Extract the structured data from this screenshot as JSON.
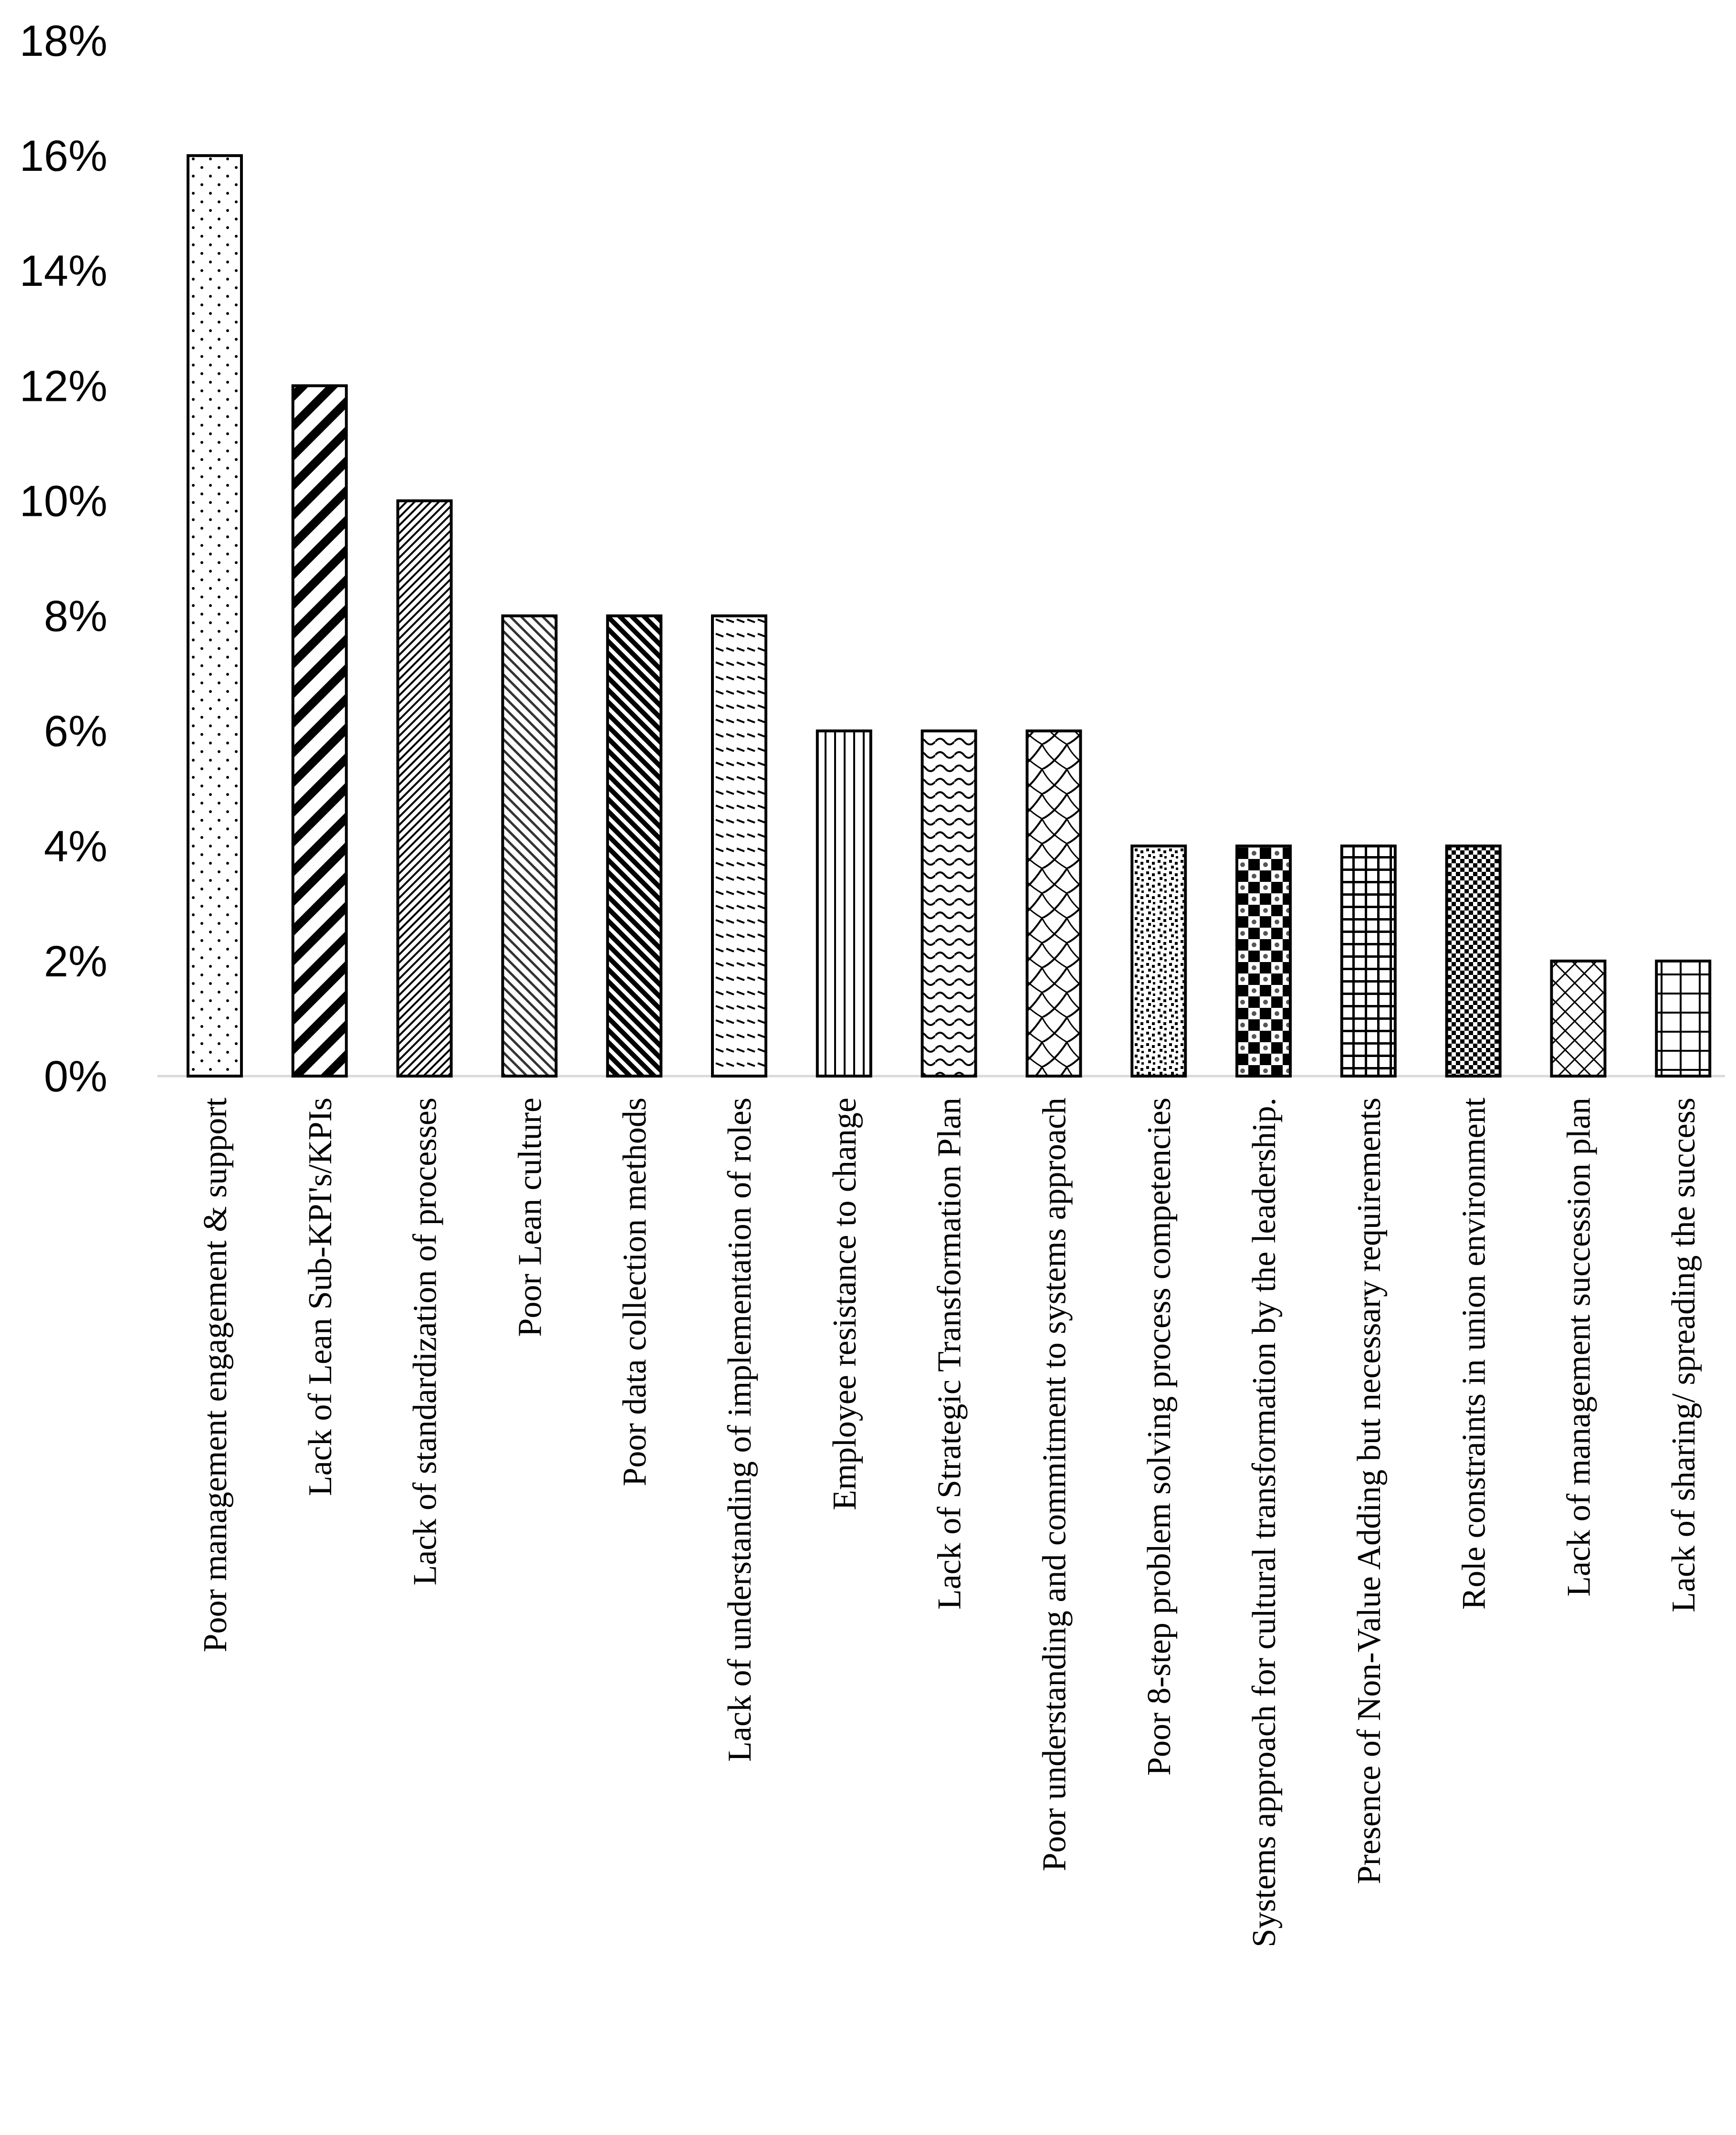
{
  "chart_data": {
    "type": "bar",
    "title": "",
    "xlabel": "",
    "ylabel": "",
    "ylim": [
      0,
      18
    ],
    "yticks": [
      "0%",
      "2%",
      "4%",
      "6%",
      "8%",
      "10%",
      "12%",
      "14%",
      "16%",
      "18%"
    ],
    "grid": false,
    "legend": "none",
    "categories": [
      "Poor management engagement & support",
      "Lack of Lean Sub-KPI's/KPIs",
      "Lack of standardization of processes",
      "Poor Lean culture",
      "Poor data collection methods",
      "Lack of understanding of implementation of roles",
      "Employee resistance to change",
      "Lack of Strategic Transformation Plan",
      "Poor understanding and commitment to systems approach",
      "Poor 8-step problem solving process competencies",
      "Systems approach for cultural transformation by the leadership.",
      "Presence of Non-Value Adding but necessary requirements",
      "Role constraints in union environment",
      "Lack of management succession plan",
      "Lack of sharing/ spreading the success"
    ],
    "values": [
      16,
      12,
      10,
      8,
      8,
      8,
      6,
      6,
      6,
      4,
      4,
      4,
      4,
      2,
      2
    ],
    "unit": "%",
    "patterns": [
      "dots",
      "wide-diagonal",
      "fine-diagonal",
      "diagonal-light",
      "diagonal-dark",
      "dashed-rows",
      "vertical-lines",
      "waves",
      "lattice",
      "speckle",
      "checker-large",
      "grid",
      "checker-small",
      "diamond-lattice",
      "large-grid"
    ]
  }
}
